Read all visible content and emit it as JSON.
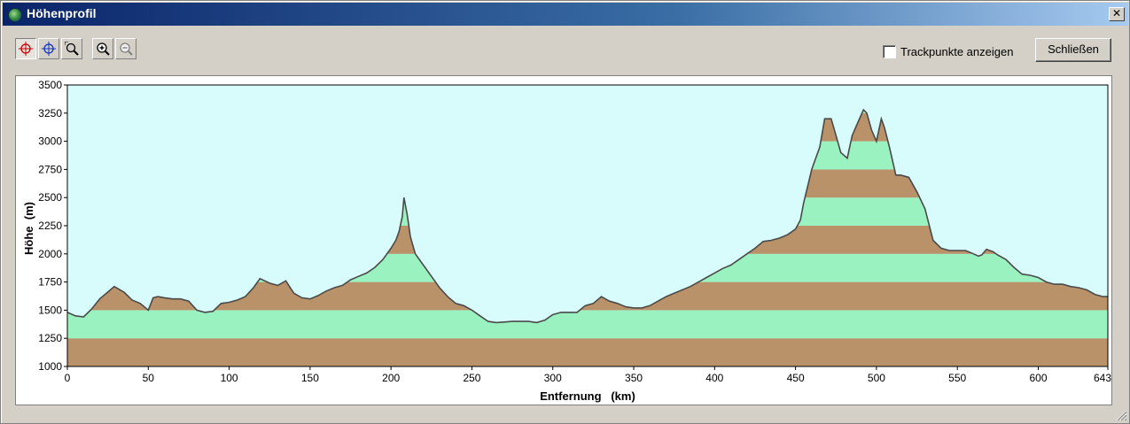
{
  "window": {
    "title": "Höhenprofil",
    "close_glyph": "✕",
    "icon": "globe-icon"
  },
  "toolbar": {
    "tools": [
      {
        "name": "crosshair-red-icon",
        "pressed": true
      },
      {
        "name": "crosshair-blue-icon",
        "pressed": false
      },
      {
        "name": "zoom-window-icon",
        "pressed": false
      },
      {
        "name": "zoom-in-icon",
        "pressed": false
      },
      {
        "name": "zoom-out-icon",
        "pressed": false
      }
    ],
    "show_trackpoints_label": "Trackpunkte anzeigen",
    "show_trackpoints_checked": false,
    "close_button_label": "Schließen"
  },
  "colors": {
    "plot_bg": "#d8fcfc",
    "band_brown": "#b9926a",
    "band_green": "#9af2c0",
    "profile_line": "#4a4a4a"
  },
  "chart_data": {
    "type": "area",
    "xlabel": "Entfernung   (km)",
    "ylabel": "Höhe  (m)",
    "xlim": [
      0,
      643
    ],
    "ylim": [
      1000,
      3500
    ],
    "x_ticks": [
      0,
      50,
      100,
      150,
      200,
      250,
      300,
      350,
      400,
      450,
      500,
      550,
      600,
      643
    ],
    "y_ticks": [
      1000,
      1250,
      1500,
      1750,
      2000,
      2250,
      2500,
      2750,
      3000,
      3250,
      3500
    ],
    "band_step": 250,
    "x": [
      0,
      5,
      10,
      15,
      20,
      25,
      29,
      35,
      40,
      45,
      50,
      53,
      56,
      60,
      65,
      70,
      75,
      80,
      85,
      90,
      95,
      100,
      105,
      110,
      115,
      119,
      125,
      130,
      135,
      140,
      145,
      150,
      155,
      160,
      165,
      170,
      175,
      180,
      185,
      190,
      195,
      200,
      203,
      205,
      207,
      208,
      210,
      212,
      215,
      220,
      225,
      230,
      235,
      240,
      245,
      250,
      255,
      260,
      265,
      270,
      275,
      280,
      285,
      290,
      295,
      300,
      305,
      310,
      315,
      320,
      325,
      330,
      335,
      340,
      345,
      350,
      355,
      360,
      365,
      370,
      375,
      380,
      385,
      390,
      395,
      400,
      405,
      410,
      415,
      420,
      425,
      430,
      435,
      440,
      445,
      450,
      453,
      455,
      460,
      465,
      468,
      472,
      475,
      478,
      482,
      485,
      488,
      492,
      494,
      497,
      500,
      503,
      505,
      508,
      512,
      515,
      520,
      525,
      530,
      535,
      540,
      545,
      550,
      555,
      560,
      563,
      565,
      568,
      572,
      575,
      580,
      585,
      590,
      595,
      600,
      605,
      610,
      615,
      620,
      625,
      630,
      635,
      640,
      643
    ],
    "y": [
      1480,
      1450,
      1440,
      1510,
      1600,
      1660,
      1710,
      1660,
      1590,
      1560,
      1500,
      1610,
      1620,
      1610,
      1600,
      1600,
      1580,
      1500,
      1480,
      1490,
      1560,
      1570,
      1590,
      1620,
      1700,
      1780,
      1740,
      1720,
      1760,
      1650,
      1610,
      1600,
      1630,
      1670,
      1700,
      1720,
      1770,
      1800,
      1830,
      1880,
      1950,
      2050,
      2120,
      2200,
      2330,
      2500,
      2350,
      2150,
      2000,
      1900,
      1800,
      1700,
      1620,
      1560,
      1540,
      1500,
      1450,
      1400,
      1390,
      1395,
      1400,
      1400,
      1400,
      1390,
      1410,
      1460,
      1480,
      1480,
      1480,
      1540,
      1560,
      1620,
      1580,
      1560,
      1530,
      1520,
      1520,
      1540,
      1580,
      1620,
      1650,
      1680,
      1710,
      1750,
      1790,
      1830,
      1870,
      1900,
      1950,
      2000,
      2050,
      2110,
      2120,
      2140,
      2170,
      2220,
      2300,
      2450,
      2750,
      2950,
      3200,
      3200,
      3050,
      2900,
      2850,
      3050,
      3150,
      3280,
      3250,
      3100,
      3000,
      3200,
      3120,
      2950,
      2700,
      2700,
      2680,
      2550,
      2400,
      2120,
      2050,
      2030,
      2030,
      2030,
      2000,
      1980,
      1990,
      2040,
      2020,
      1990,
      1950,
      1880,
      1820,
      1810,
      1790,
      1750,
      1730,
      1730,
      1710,
      1700,
      1680,
      1640,
      1620,
      1620
    ]
  }
}
